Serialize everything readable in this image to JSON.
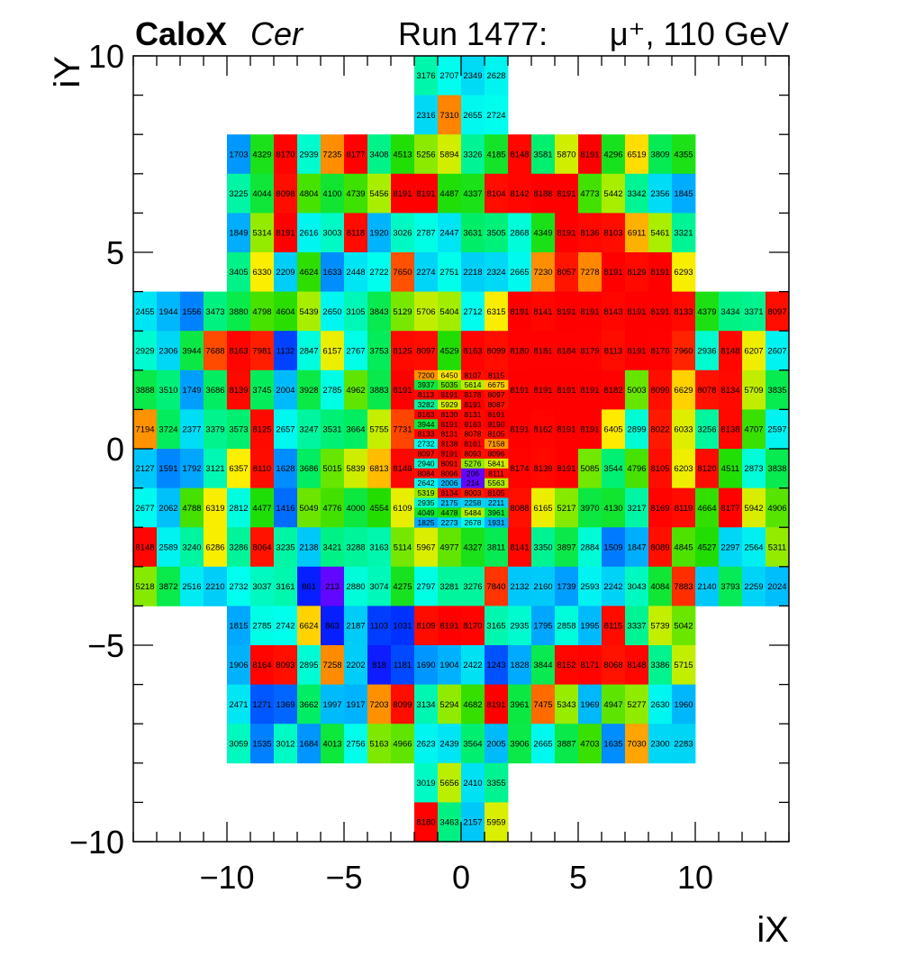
{
  "header": {
    "title_bold": "CaloX",
    "title_italic": "Cer",
    "run_label": "Run 1477:",
    "particle_label": "μ⁺, 110 GeV"
  },
  "chart_data": {
    "type": "heatmap",
    "title": "CaloX Cer — Run 1477: μ⁺, 110 GeV",
    "xlabel": "iX",
    "ylabel": "iY",
    "xlim": [
      -14,
      14
    ],
    "ylim": [
      -10,
      10
    ],
    "x_ticks": [
      -10,
      -5,
      0,
      5,
      10
    ],
    "y_ticks": [
      -10,
      -5,
      0,
      5,
      10
    ],
    "x_tick_labels": [
      "−10",
      "−5",
      "0",
      "5",
      "10"
    ],
    "y_tick_labels": [
      "−10",
      "−5",
      "0",
      "5",
      "10"
    ],
    "grid": false,
    "legend": "none",
    "color_scale": {
      "min": 0,
      "max": 8191,
      "stops": [
        "#8000ff",
        "#0020ff",
        "#00aaff",
        "#00ffee",
        "#00ee66",
        "#22dd00",
        "#aaee00",
        "#ffee00",
        "#ff8800",
        "#ff0000"
      ]
    },
    "columns_coarse": [
      -14,
      -13,
      -12,
      -11,
      -10,
      -9,
      -8,
      -7,
      -6,
      -5,
      -4,
      -3,
      -2,
      -1,
      0,
      1,
      2,
      3,
      4,
      5,
      6,
      7,
      8,
      9,
      10,
      11,
      12,
      13
    ],
    "rows": [
      {
        "y": 9,
        "x0": -2,
        "values": [
          3176,
          2707,
          2349,
          2628
        ]
      },
      {
        "y": 8,
        "x0": -2,
        "values": [
          2316,
          7310,
          2655,
          2724
        ]
      },
      {
        "y": 7,
        "x0": -10,
        "values": [
          1703,
          4329,
          8170,
          2939,
          7235,
          8177,
          3408,
          4513,
          5256,
          5894,
          3326,
          4185,
          8148,
          3581,
          5870,
          8191,
          4296,
          6519,
          3809,
          4355
        ]
      },
      {
        "y": 6,
        "x0": -10,
        "values": [
          3225,
          4044,
          8098,
          4804,
          4100,
          4739,
          5456,
          8191,
          8191,
          4487,
          4337,
          8104,
          8142,
          8188,
          8191,
          4773,
          5442,
          3342,
          2356,
          1845
        ]
      },
      {
        "y": 5,
        "x0": -10,
        "values": [
          1849,
          5314,
          8191,
          2616,
          3003,
          8118,
          1920,
          3026,
          2787,
          2447,
          3631,
          3505,
          2868,
          4349,
          8191,
          8136,
          8103,
          6911,
          5461,
          3321
        ]
      },
      {
        "y": 4,
        "x0": -10,
        "values": [
          3405,
          6330,
          2209,
          4624,
          1633,
          2448,
          2722,
          7650,
          2274,
          2751,
          2218,
          2324,
          2665,
          7230,
          8057,
          7278,
          8191,
          8129,
          8191,
          6293
        ]
      },
      {
        "y": 3,
        "x0": -14,
        "values": [
          2455,
          1944,
          1556,
          3473,
          3880,
          4798,
          4604,
          5439,
          2650,
          3105,
          3843,
          5129,
          5706,
          5404,
          2712,
          6315,
          8191,
          8141,
          8191,
          8191,
          8143,
          8191,
          8191,
          8133,
          4379,
          3434,
          3371,
          8097
        ]
      },
      {
        "y": 2,
        "x0": -14,
        "values": [
          2929,
          2306,
          3944,
          7688,
          8163,
          7981,
          1132,
          2847,
          6157,
          2767,
          3753,
          8125,
          8097,
          4529,
          8163,
          8099,
          8180,
          8181,
          8184,
          8179,
          8113,
          8191,
          8176,
          7960,
          2936,
          8148,
          6207,
          2607
        ]
      },
      {
        "y": 1,
        "x0": -14,
        "values": [
          3888,
          3510,
          1749,
          3686,
          8139,
          3745,
          2004,
          3928,
          2785,
          4962,
          3883,
          8191,
          null,
          null,
          null,
          null,
          8191,
          8191,
          8191,
          8191,
          8182,
          5003,
          8099,
          6629,
          8078,
          8134,
          5709,
          3835
        ]
      },
      {
        "y": 0,
        "x0": -14,
        "values": [
          7194,
          3724,
          2377,
          3379,
          3573,
          8125,
          2657,
          3247,
          3531,
          3664,
          5755,
          7731,
          null,
          null,
          null,
          null,
          8191,
          8162,
          8191,
          8191,
          6405,
          2899,
          8022,
          6033,
          3256,
          8138,
          4707,
          2597
        ]
      },
      {
        "y": -1,
        "x0": -14,
        "values": [
          2127,
          1591,
          1792,
          3121,
          6357,
          8110,
          1628,
          3686,
          5015,
          5839,
          6813,
          8146,
          null,
          null,
          null,
          null,
          8174,
          8139,
          8191,
          5085,
          3544,
          4796,
          8105,
          6203,
          8120,
          4511,
          2873,
          3838
        ]
      },
      {
        "y": -2,
        "x0": -14,
        "values": [
          2677,
          2062,
          4788,
          6319,
          2812,
          4477,
          1416,
          5049,
          4776,
          4000,
          4554,
          6109,
          null,
          null,
          null,
          null,
          8088,
          6165,
          5217,
          3970,
          4130,
          3217,
          8169,
          8119,
          4664,
          8177,
          5942,
          4906
        ]
      },
      {
        "y": -3,
        "x0": -14,
        "values": [
          8148,
          2589,
          3240,
          6286,
          3286,
          8064,
          3235,
          2138,
          3421,
          3288,
          3163,
          5114,
          5967,
          4977,
          4327,
          3811,
          8141,
          3350,
          3897,
          2884,
          1509,
          1847,
          8089,
          4845,
          4527,
          2297,
          2564,
          5311
        ]
      },
      {
        "y": -4,
        "x0": -14,
        "values": [
          5218,
          3872,
          2516,
          2210,
          2732,
          3037,
          3161,
          861,
          213,
          2880,
          3074,
          4275,
          2797,
          3281,
          3276,
          7840,
          2132,
          2160,
          1739,
          2593,
          2242,
          3043,
          4084,
          7883,
          2140,
          3793,
          2259,
          2024
        ]
      },
      {
        "y": -5,
        "x0": -10,
        "values": [
          1815,
          2785,
          2742,
          6624,
          863,
          2187,
          1103,
          1031,
          8109,
          8191,
          8170,
          3165,
          2935,
          1795,
          2858,
          1995,
          8115,
          3337,
          5739,
          5042
        ]
      },
      {
        "y": -6,
        "x0": -10,
        "values": [
          1906,
          8164,
          8093,
          2895,
          7258,
          2202,
          818,
          1181,
          1690,
          1904,
          2422,
          1243,
          1828,
          3844,
          8152,
          8171,
          8068,
          8148,
          3386,
          5715
        ]
      },
      {
        "y": -7,
        "x0": -10,
        "values": [
          2471,
          1271,
          1369,
          3662,
          1997,
          1917,
          7203,
          8099,
          3134,
          5294,
          4682,
          8191,
          3961,
          7475,
          5343,
          1969,
          4947,
          5277,
          2630,
          1960
        ]
      },
      {
        "y": -8,
        "x0": -10,
        "values": [
          3059,
          1535,
          3012,
          1684,
          4013,
          2756,
          5163,
          4966,
          2623,
          2439,
          3564,
          2005,
          3906,
          2665,
          3887,
          4703,
          1635,
          7030,
          2300,
          2283
        ]
      },
      {
        "y": -9,
        "x0": -2,
        "values": [
          3019,
          5656,
          2410,
          3355
        ]
      },
      {
        "y": -10,
        "x0": -2,
        "values": [
          8180,
          3463,
          2157,
          5959
        ]
      }
    ],
    "fine_x0": -2,
    "fine_y_top": 2,
    "fine_rows": [
      [
        7200,
        6450,
        8107,
        8115
      ],
      [
        3937,
        5035,
        5614,
        6675
      ],
      [
        8113,
        8191,
        8178,
        8097
      ],
      [
        3282,
        5929,
        8191,
        8087
      ],
      [
        8163,
        8130,
        8131,
        8191
      ],
      [
        3944,
        8191,
        8163,
        8190
      ],
      [
        8133,
        8131,
        8078,
        8105
      ],
      [
        2732,
        8138,
        8161,
        7158
      ],
      [
        8097,
        8191,
        8093,
        8096
      ],
      [
        2940,
        8091,
        5276,
        5841
      ],
      [
        8084,
        8096,
        206,
        8111
      ],
      [
        2642,
        2006,
        214,
        5563
      ],
      [
        5319,
        8134,
        8003,
        8105
      ],
      [
        2935,
        2175,
        2258,
        2211
      ],
      [
        4049,
        4478,
        5484,
        3961
      ],
      [
        1825,
        2273,
        2678,
        1931
      ]
    ]
  }
}
